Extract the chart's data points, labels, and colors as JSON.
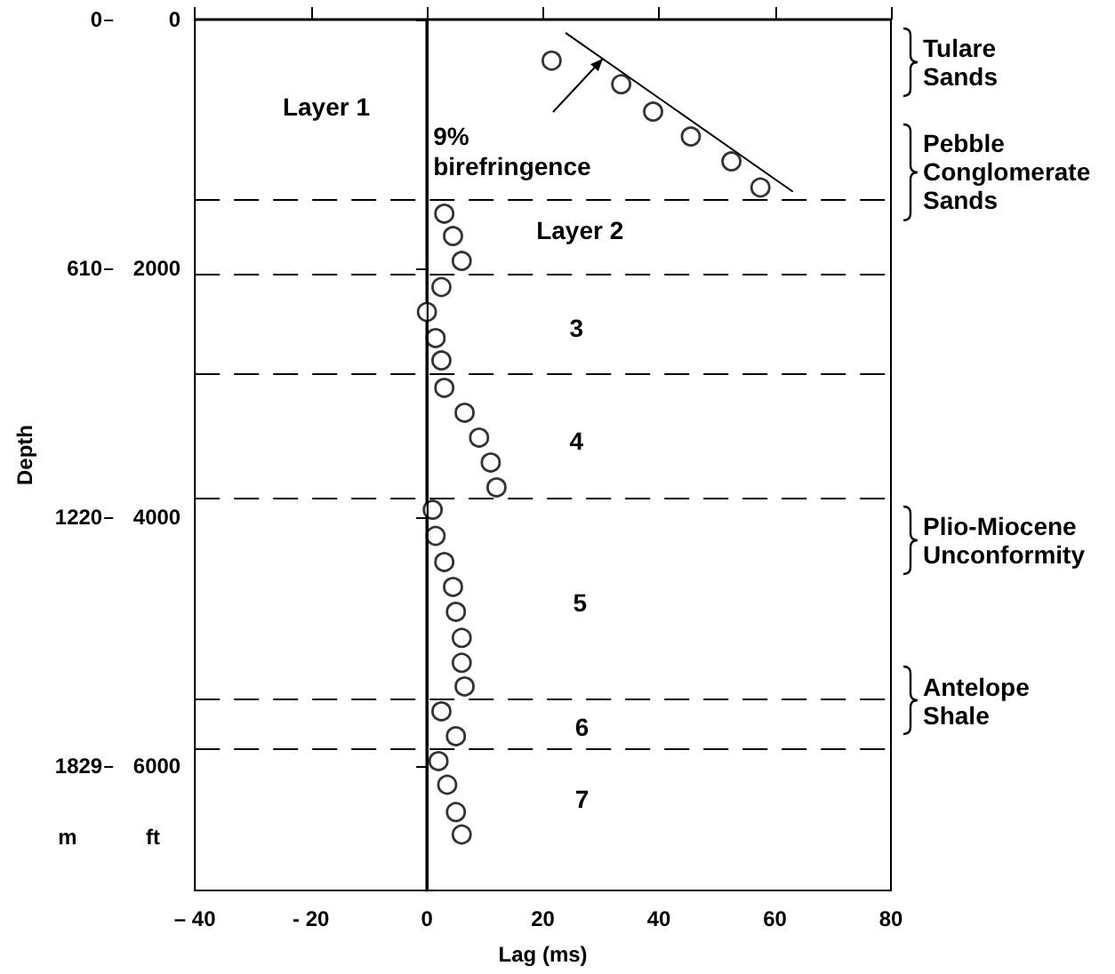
{
  "chart_data": {
    "type": "scatter",
    "xlabel": "Lag (ms)",
    "y2label": "Depth",
    "xlim": [
      -40,
      80
    ],
    "xticks": [
      {
        "value": -40,
        "label": "– 40"
      },
      {
        "value": -20,
        "label": "- 20"
      },
      0,
      20,
      40,
      60,
      80
    ],
    "ylim": [
      7000,
      0
    ],
    "yticks": [
      0,
      2000,
      4000,
      6000
    ],
    "y2lim": [
      2134,
      0
    ],
    "y2ticks": [
      0,
      610,
      1220,
      1829
    ],
    "marker": "circle",
    "grid": false,
    "series": [
      {
        "color": "#000000",
        "x": [
          21.5,
          33.5,
          39,
          45.5,
          52.5,
          57.5,
          3,
          4.5,
          6,
          2.5,
          0,
          1.5,
          2.5,
          3,
          6.5,
          9,
          11,
          12,
          1,
          1.5,
          3,
          4.5,
          5,
          6,
          6,
          6.5,
          2.5,
          5,
          2,
          3.5,
          5,
          6
        ],
        "values": [
          330,
          520,
          740,
          940,
          1140,
          1350,
          1560,
          1740,
          1940,
          2150,
          2350,
          2560,
          2740,
          2960,
          3160,
          3360,
          3560,
          3760,
          3940,
          4150,
          4360,
          4560,
          4760,
          4970,
          5170,
          5360,
          5560,
          5760,
          5960,
          6150,
          6370,
          6550
        ]
      },
      {
        "type": "line",
        "color": "#000000",
        "marker": "none",
        "line_style": "solid",
        "x": [
          24,
          63
        ],
        "values": [
          110,
          1380
        ]
      }
    ],
    "ref_lines": [
      {
        "axis": "x",
        "value": 0,
        "line_style": "solid"
      },
      {
        "axis": "y",
        "value": 1450,
        "line_style": "dashed"
      },
      {
        "axis": "y",
        "value": 2050,
        "line_style": "dashed"
      },
      {
        "axis": "y",
        "value": 2850,
        "line_style": "dashed"
      },
      {
        "axis": "y",
        "value": 3840,
        "line_style": "dashed"
      },
      {
        "axis": "y",
        "value": 5460,
        "line_style": "dashed"
      },
      {
        "axis": "y",
        "value": 5860,
        "line_style": "dashed"
      }
    ],
    "annotations": [
      "Layer 1",
      "9% birefringence",
      "Layer 2",
      "3",
      "4",
      "5",
      "6",
      "7",
      "Tulare Sands",
      "Pebble Conglomerate Sands",
      "Plio-Miocene Unconformity",
      "Antelope Shale",
      "m",
      "ft"
    ]
  }
}
